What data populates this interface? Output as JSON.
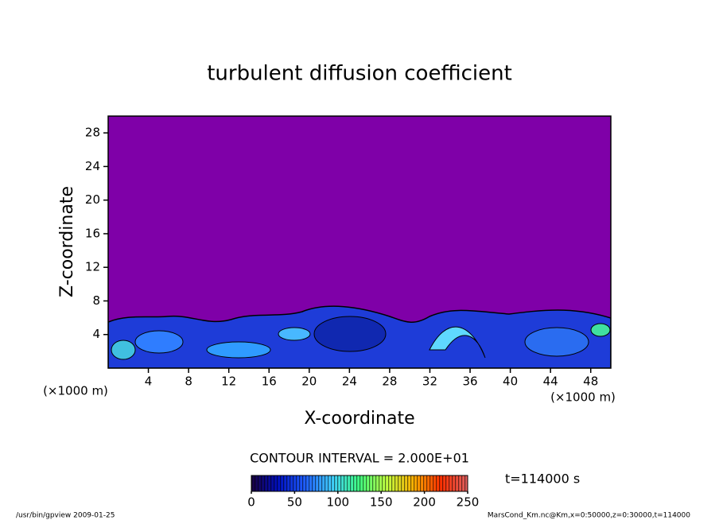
{
  "chart_data": {
    "type": "contour",
    "title": "turbulent diffusion coefficient",
    "x_label": "X-coordinate",
    "y_label": "Z-coordinate",
    "x_unit": "(×1000 m)",
    "y_unit": "(×1000 m)",
    "xlim": [
      0,
      50
    ],
    "xticks": [
      4,
      8,
      12,
      16,
      20,
      24,
      28,
      32,
      36,
      40,
      44,
      48
    ],
    "ylim": [
      0,
      30
    ],
    "yticks": [
      4,
      8,
      12,
      16,
      20,
      24,
      28
    ],
    "contour_interval": "CONTOUR INTERVAL = 2.000E+01",
    "time_label": "t=114000 s",
    "colorbar": {
      "lim": [
        0,
        250
      ],
      "ticks": [
        0,
        50,
        100,
        150,
        200,
        250
      ],
      "colors": [
        "#1a0040",
        "#0010c0",
        "#2060ff",
        "#40d0ff",
        "#40ff80",
        "#c0ff40",
        "#ffb000",
        "#ff3000",
        "#e06060"
      ]
    },
    "background_color": "#7f00a8",
    "footer_left": "/usr/bin/gpview  2009-01-25",
    "footer_right": "MarsCond_Km.nc@Km,x=0:50000,z=0:30000,t=114000"
  }
}
